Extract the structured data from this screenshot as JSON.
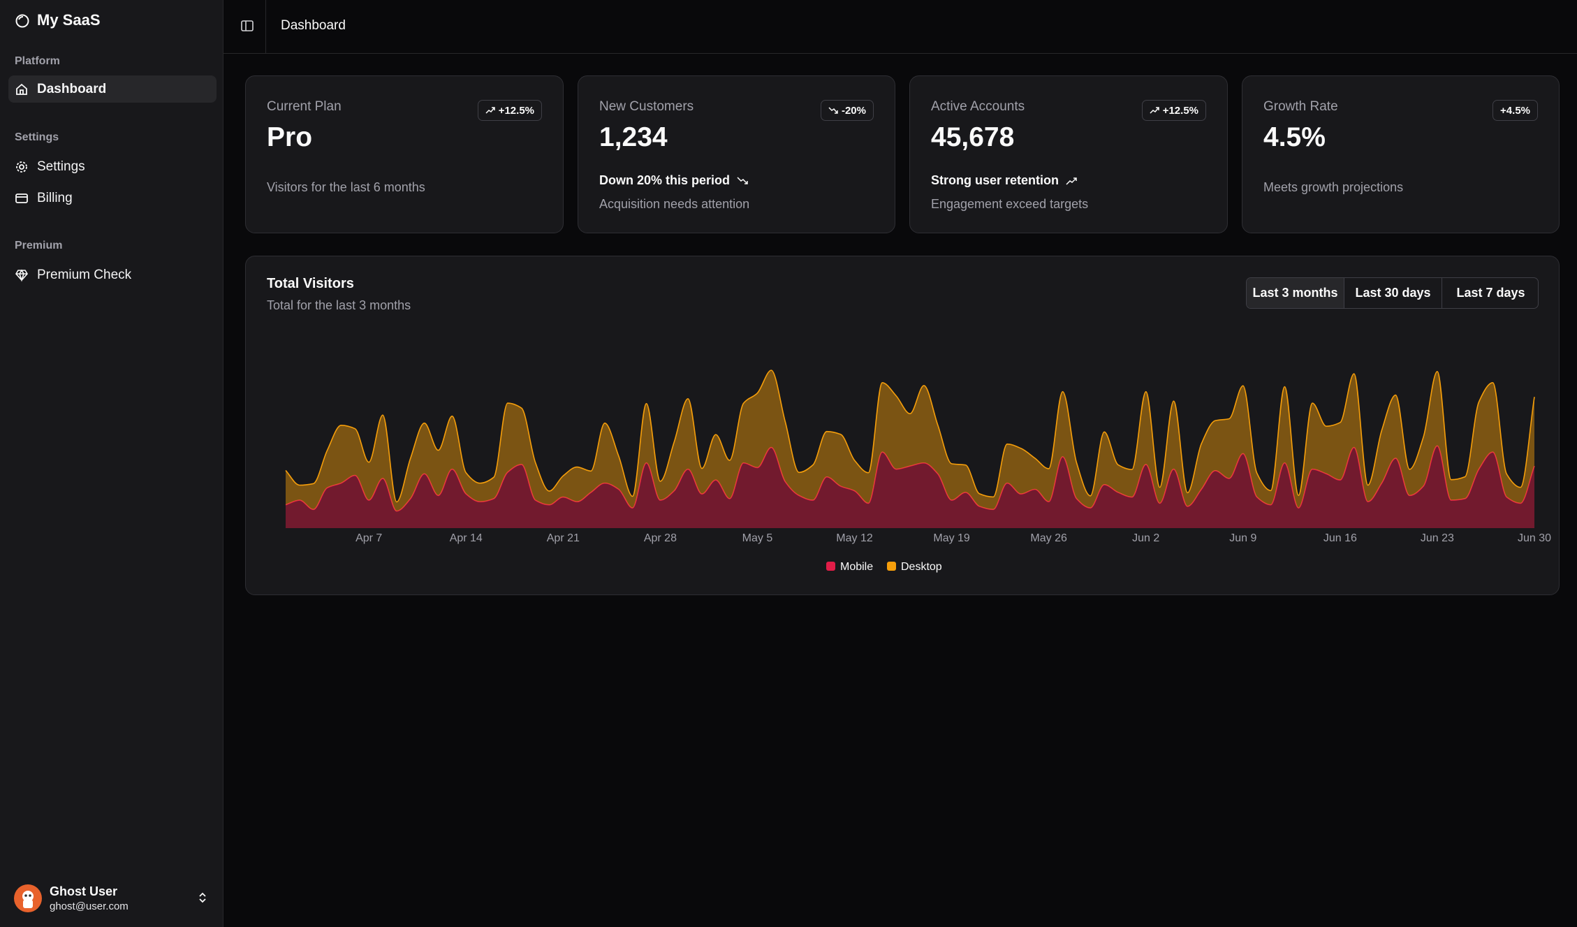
{
  "sidebar": {
    "brand": "My SaaS",
    "groups": [
      {
        "label": "Platform",
        "items": [
          "Dashboard"
        ]
      },
      {
        "label": "Settings",
        "items": [
          "Settings",
          "Billing"
        ]
      },
      {
        "label": "Premium",
        "items": [
          "Premium Check"
        ]
      }
    ],
    "user": {
      "name": "Ghost User",
      "email": "ghost@user.com"
    }
  },
  "header": {
    "title": "Dashboard"
  },
  "cards": [
    {
      "label": "Current Plan",
      "badge": "+12.5%",
      "value": "Pro",
      "description": "Visitors for the last 6 months"
    },
    {
      "label": "New Customers",
      "badge": "-20%",
      "value": "1,234",
      "headline": "Down 20% this period",
      "description": "Acquisition needs attention"
    },
    {
      "label": "Active Accounts",
      "badge": "+12.5%",
      "value": "45,678",
      "headline": "Strong user retention",
      "description": "Engagement exceed targets"
    },
    {
      "label": "Growth Rate",
      "badge": "+4.5%",
      "value": "4.5%",
      "description": "Meets growth projections"
    }
  ],
  "range_tabs": [
    "Last 3 months",
    "Last 30 days",
    "Last 7 days"
  ],
  "chart_data": {
    "type": "stacked-area",
    "title": "Total Visitors",
    "subtitle": "Total for the last 3 months",
    "x": [
      null,
      null,
      null,
      null,
      null,
      null,
      "Apr 7",
      null,
      null,
      null,
      null,
      null,
      null,
      "Apr 14",
      null,
      null,
      null,
      null,
      null,
      null,
      "Apr 21",
      null,
      null,
      null,
      null,
      null,
      null,
      "Apr 28",
      null,
      null,
      null,
      null,
      null,
      null,
      "May 5",
      null,
      null,
      null,
      null,
      null,
      null,
      "May 12",
      null,
      null,
      null,
      null,
      null,
      null,
      "May 19",
      null,
      null,
      null,
      null,
      null,
      null,
      "May 26",
      null,
      null,
      null,
      null,
      null,
      null,
      "Jun 2",
      null,
      null,
      null,
      null,
      null,
      null,
      "Jun 9",
      null,
      null,
      null,
      null,
      null,
      null,
      "Jun 16",
      null,
      null,
      null,
      null,
      null,
      null,
      "Jun 23",
      null,
      null,
      null,
      null,
      null,
      null,
      "Jun 30"
    ],
    "ylim": [
      0,
      1000
    ],
    "series": [
      {
        "name": "Mobile",
        "color": "#e11d48",
        "values": [
          150,
          180,
          120,
          260,
          290,
          340,
          180,
          320,
          110,
          190,
          350,
          210,
          380,
          220,
          170,
          190,
          360,
          410,
          180,
          150,
          200,
          170,
          230,
          290,
          250,
          130,
          420,
          180,
          240,
          380,
          220,
          310,
          190,
          420,
          390,
          520,
          300,
          210,
          180,
          330,
          270,
          240,
          160,
          490,
          380,
          400,
          420,
          350,
          180,
          230,
          140,
          120,
          290,
          220,
          250,
          170,
          460,
          190,
          130,
          280,
          230,
          200,
          410,
          160,
          380,
          140,
          250,
          370,
          320,
          480,
          200,
          150,
          420,
          130,
          380,
          350,
          310,
          520,
          170,
          290,
          450,
          210,
          270,
          530,
          180,
          190,
          380,
          490,
          200,
          160,
          400
        ]
      },
      {
        "name": "Desktop",
        "color": "#f59e0b",
        "values": [
          222,
          97,
          167,
          242,
          373,
          301,
          245,
          409,
          59,
          261,
          327,
          292,
          342,
          137,
          120,
          138,
          446,
          364,
          243,
          89,
          137,
          224,
          138,
          387,
          215,
          75,
          383,
          122,
          315,
          454,
          165,
          293,
          247,
          385,
          481,
          498,
          388,
          149,
          227,
          293,
          335,
          197,
          197,
          448,
          473,
          338,
          499,
          315,
          235,
          177,
          82,
          81,
          252,
          294,
          201,
          213,
          420,
          233,
          78,
          340,
          178,
          178,
          470,
          103,
          439,
          88,
          294,
          323,
          385,
          438,
          155,
          92,
          492,
          81,
          426,
          307,
          371,
          475,
          107,
          341,
          408,
          169,
          317,
          480,
          132,
          141,
          434,
          448,
          149,
          103,
          446
        ]
      }
    ]
  }
}
